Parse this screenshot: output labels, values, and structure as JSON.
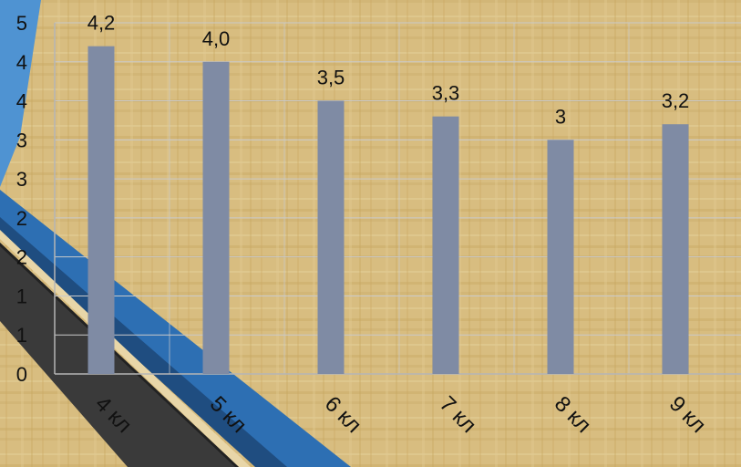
{
  "colors": {
    "background": "#d9bf83",
    "bar": "#7f8ba4",
    "gridline": "#c9c9c9",
    "axis": "#b5b5b5",
    "stripe_light_blue": "#4f93d2",
    "stripe_blue": "#2d6fb3",
    "stripe_dark": "#3a3a3a",
    "text": "#111111"
  },
  "chart_data": {
    "type": "bar",
    "categories": [
      "4 кл",
      "5 кл",
      "6 кл",
      "7 кл",
      "8 кл",
      "9 кл"
    ],
    "values": [
      4.2,
      4.0,
      3.5,
      3.3,
      3.0,
      3.2
    ],
    "data_labels": [
      "4,2",
      "4,0",
      "3,5",
      "3,3",
      "3",
      "3,2"
    ],
    "y_tick_values": [
      0,
      0.5,
      1,
      1.5,
      2,
      2.5,
      3,
      3.5,
      4,
      4.5
    ],
    "y_tick_labels": [
      "0",
      "1",
      "1",
      "2",
      "2",
      "3",
      "3",
      "4",
      "4",
      "5"
    ],
    "ylim": [
      0,
      4.5
    ],
    "grid": true,
    "title": "",
    "xlabel": "",
    "ylabel": ""
  }
}
